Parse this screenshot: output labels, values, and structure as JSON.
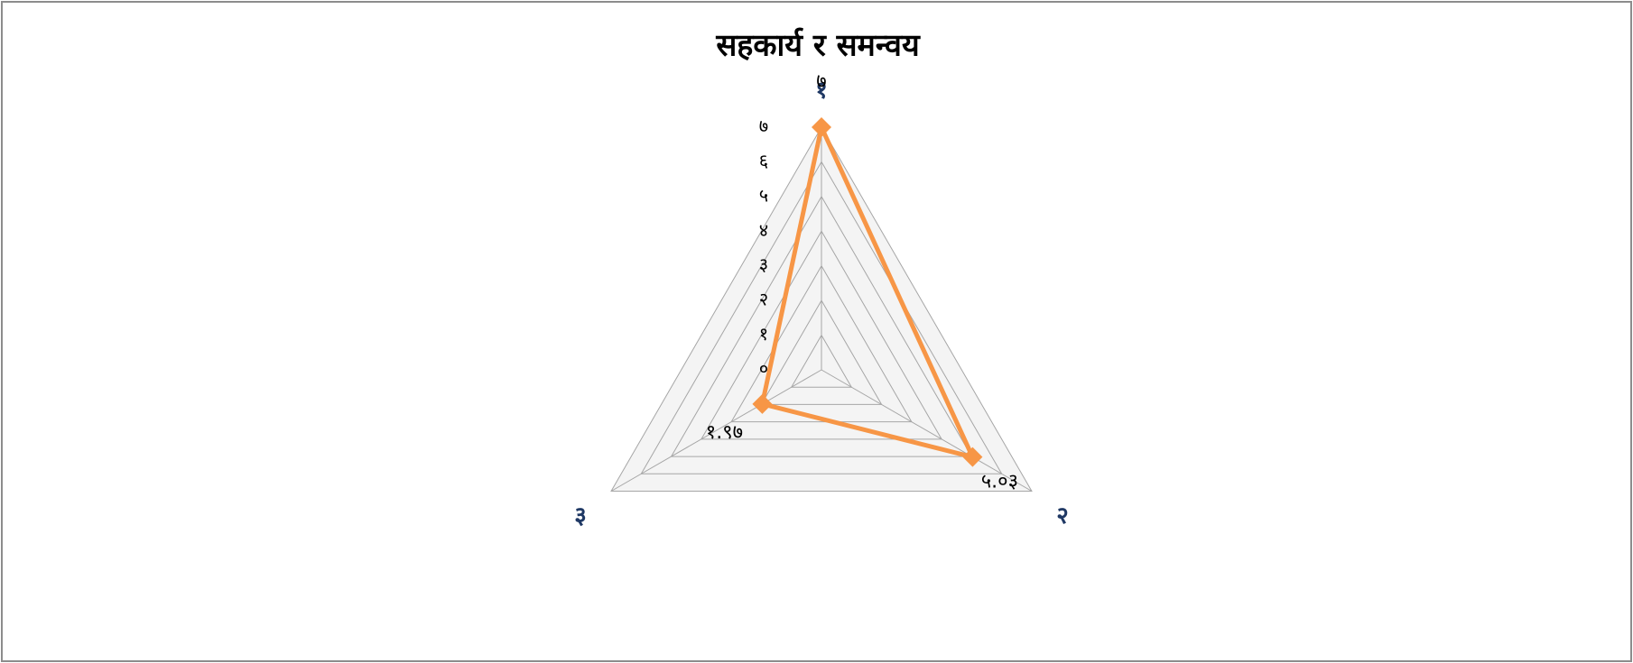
{
  "chart_data": {
    "type": "radar",
    "title": "सहकार्य र समन्वय",
    "categories": [
      "१",
      "२",
      "३"
    ],
    "series": [
      {
        "name": null,
        "color": "#f79646",
        "values": [
          7,
          5.03,
          1.97
        ],
        "value_labels": [
          "७",
          "५.०३",
          "१.९७"
        ]
      }
    ],
    "ylim": [
      0,
      7
    ],
    "yticks": [
      {
        "value": 0,
        "label": "०"
      },
      {
        "value": 1,
        "label": "१"
      },
      {
        "value": 2,
        "label": "२"
      },
      {
        "value": 3,
        "label": "३"
      },
      {
        "value": 4,
        "label": "४"
      },
      {
        "value": 5,
        "label": "५"
      },
      {
        "value": 6,
        "label": "६"
      },
      {
        "value": 7,
        "label": "७"
      }
    ],
    "grid": true
  }
}
